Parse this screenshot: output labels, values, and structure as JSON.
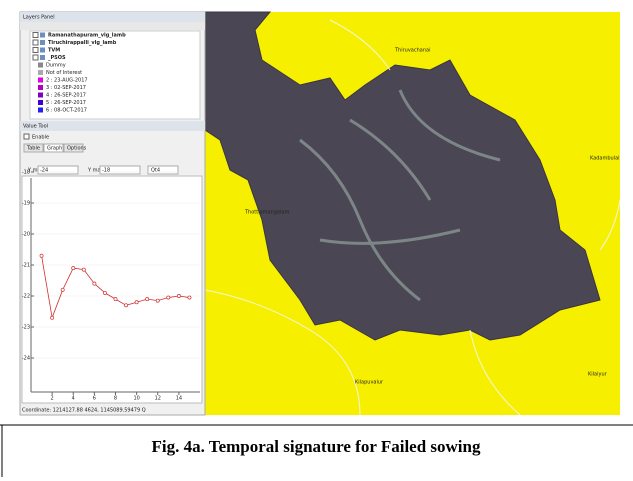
{
  "layers_panel": {
    "title": "Layers Panel",
    "layers": [
      "Ramanathapuram_vlg_lamb",
      "Tiruchirappalli_vlg_lamb",
      "TVM",
      "_PSOS"
    ],
    "legend": [
      "Dummy",
      "Not of Interest",
      "2 : 23-AUG-2017",
      "3 : 02-SEP-2017",
      "4 : 26-SEP-2017",
      "5 : 26-SEP-2017",
      "6 : 08-OCT-2017"
    ],
    "legend_colors": [
      "#888888",
      "#a9a9a9",
      "#e000e0",
      "#b000c0",
      "#8000c0",
      "#4000d0",
      "#2020f0"
    ]
  },
  "value_tool": {
    "title": "Value Tool",
    "enable": "Enable",
    "tabs": [
      "Table",
      "Graph",
      "Options"
    ],
    "ymin_label": "Y min",
    "ymin": "-24",
    "ymax_label": "Y max",
    "ymax": "-18",
    "library": "Qt4",
    "coordinate": "Coordinate: 1214127.88 4624, 1145089.59479 Q"
  },
  "chart_data": {
    "type": "line",
    "x": [
      1,
      2,
      3,
      4,
      5,
      6,
      7,
      8,
      9,
      10,
      11,
      12,
      13,
      14,
      15
    ],
    "values": [
      -20.7,
      -22.7,
      -21.8,
      -21.1,
      -21.15,
      -21.6,
      -21.9,
      -22.1,
      -22.3,
      -22.2,
      -22.1,
      -22.15,
      -22.05,
      -22.0,
      -22.05
    ],
    "color": "#d03030",
    "xlim": [
      0,
      16
    ],
    "xticks": [
      2,
      4,
      6,
      8,
      10,
      12,
      14
    ],
    "ylim": [
      -25,
      -18
    ],
    "yticks": [
      -18,
      -19,
      -20,
      -21,
      -22,
      -23,
      -24
    ],
    "grid": true
  },
  "map": {
    "labels": [
      "Thiruvachanai",
      "Thottiamangalam",
      "Kadambulai",
      "Kilapuvalur",
      "Kilaiyur"
    ]
  },
  "caption": "Fig. 4a. Temporal signature for Failed sowing"
}
